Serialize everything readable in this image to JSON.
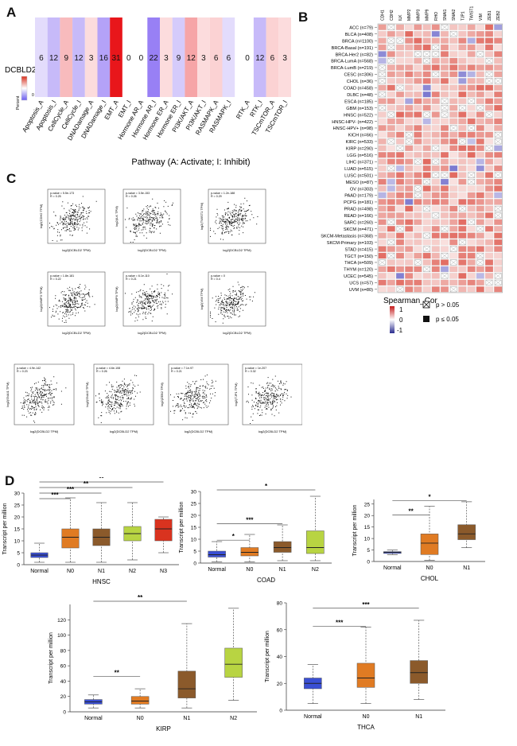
{
  "panels": {
    "A": "A",
    "B": "B",
    "C": "C",
    "D": "D"
  },
  "panelA": {
    "gene": "DCBLD2",
    "xlabel": "Pathway (A: Activate; I: Inhibit)",
    "legend_title": "Percent",
    "legend_zero": "0",
    "chart_data": {
      "type": "heatmap",
      "categories": [
        "Apoptosis_A",
        "Apoptosis_I",
        "CellCycle_A",
        "CellCycle_I",
        "DNADamage_A",
        "DNADamage_I",
        "EMT_A",
        "EMT_I",
        "Hormone AR_A",
        "Hormone AR_I",
        "Hormone ER_A",
        "Hormone ER_I",
        "PI3K/AKT_A",
        "PI3K/AKT_I",
        "RASMAPK_A",
        "RASMAPK_I",
        "RTK_A",
        "RTK_I",
        "TSCmTOR_A",
        "TSCmTOR_I"
      ],
      "values": [
        6,
        12,
        9,
        12,
        3,
        16,
        31,
        0,
        0,
        22,
        3,
        9,
        12,
        3,
        6,
        6,
        0,
        12,
        6,
        3
      ],
      "signs": [
        -1,
        -1,
        1,
        -1,
        1,
        -1,
        1,
        0,
        0,
        -1,
        1,
        -1,
        1,
        1,
        1,
        -1,
        0,
        -1,
        1,
        1
      ]
    }
  },
  "panelB": {
    "legend_title": "Spearman_Cor",
    "scale_labels": [
      "1",
      "0",
      "-1"
    ],
    "ns_label": "p > 0.05",
    "sig_label": "p ≤ 0.05",
    "chart_data": {
      "type": "heatmap",
      "genes": [
        "CDH1",
        "CDH2",
        "ILK",
        "MMP2",
        "MMP3",
        "MMP9",
        "RHO",
        "SNAI1",
        "SNAI2",
        "TJP1",
        "TWIST1",
        "VIM",
        "ZEB1",
        "ZEB2"
      ],
      "cancers": [
        "ACC (n=79)",
        "BLCA (n=408)",
        "BRCA (n=1100)",
        "BRCA-Basal (n=191)",
        "BRCA-Her2 (n=82)",
        "BRCA-LumA (n=568)",
        "BRCA-LumB (n=219)",
        "CESC (n=306)",
        "CHOL (n=36)",
        "COAD (n=458)",
        "DLBC (n=48)",
        "ESCA (n=185)",
        "GBM (n=153)",
        "HNSC (n=522)",
        "HNSC-HPV- (n=422)",
        "HNSC-HPV+ (n=98)",
        "KICH (n=66)",
        "KIRC (n=533)",
        "KIRP (n=290)",
        "LGG (n=516)",
        "LIHC (n=371)",
        "LUAD (n=515)",
        "LUSC (n=501)",
        "MESO (n=87)",
        "OV (n=303)",
        "PAAD (n=179)",
        "PCPG (n=181)",
        "PRAD (n=498)",
        "READ (n=166)",
        "SARC (n=260)",
        "SKCM (n=471)",
        "SKCM-Metastasis (n=368)",
        "SKCM-Primary (n=103)",
        "STAD (n=415)",
        "TGCT (n=150)",
        "THCA (n=509)",
        "THYM (n=120)",
        "UCEC (n=545)",
        "UCS (n=57)",
        "UVM (n=80)"
      ]
    }
  },
  "panelC": {
    "plots": [
      {
        "stat": "p-value = 5.5e-173",
        "r": "R = 0.25",
        "ylabel": "log2(CDH2 TPM)",
        "xlabel": "log2(DCBLD2 TPM)"
      },
      {
        "stat": "p-value = 3.5e-153",
        "r": "R = 0.26",
        "ylabel": "log2(ILK TPM)",
        "xlabel": "log2(DCBLD2 TPM)"
      },
      {
        "stat": "p-value = 1.2e-188",
        "r": "R = 0.29",
        "ylabel": "log2(TWIST1 TPM)",
        "xlabel": "log2(DCBLD2 TPM)"
      },
      {
        "stat": "p-value = 1.8e-181",
        "r": "R = 0.22",
        "ylabel": "log2(MMP3 TPM)",
        "xlabel": "log2(DCBLD2 TPM)"
      },
      {
        "stat": "p-value = 6.1e-110",
        "r": "R = 0.21",
        "ylabel": "log2(MMP9 TPM)",
        "xlabel": "log2(DCBLD2 TPM)"
      },
      {
        "stat": "p-value = 0",
        "r": "R = 0.4",
        "ylabel": "log2(VIM TPM)",
        "xlabel": "log2(DCBLD2 TPM)"
      },
      {
        "stat": "p-value = 4.9e-142",
        "r": "R = 0.23",
        "ylabel": "log2(SNAI1 TPM)",
        "xlabel": "log2(DCBLD2 TPM)"
      },
      {
        "stat": "p-value = 4.6e-108",
        "r": "R = 0.26",
        "ylabel": "log2(SNAI2 TPM)",
        "xlabel": "log2(DCBLD2 TPM)"
      },
      {
        "stat": "p-value = 7.1e-97",
        "r": "R = 0.21",
        "ylabel": "log2(ZEB2 TPM)",
        "xlabel": "log2(DCBLD2 TPM)"
      },
      {
        "stat": "p-value = 1e-207",
        "r": "R = 0.32",
        "ylabel": "log2(TJP1 TPM)",
        "xlabel": "log2(DCBLD2 TPM)"
      }
    ]
  },
  "panelD": {
    "ylabel": "Transcript per million",
    "colors": {
      "Normal": "#3a4fd4",
      "N0": "#e07b23",
      "N1": "#8b5a2b",
      "N2": "#b8d442",
      "N3": "#d9331f"
    },
    "chart_data": [
      {
        "type": "box",
        "title": "HNSC",
        "yticks": [
          "0",
          "5",
          "10",
          "15",
          "20",
          "25",
          "30"
        ],
        "ymax": 30,
        "categories": [
          "Normal",
          "N0",
          "N1",
          "N2",
          "N3"
        ],
        "stats": [
          [
            1,
            3,
            4,
            5,
            9
          ],
          [
            1,
            7,
            11.5,
            15,
            28
          ],
          [
            1,
            8,
            11.5,
            15,
            26
          ],
          [
            2,
            10,
            13,
            16,
            26
          ],
          [
            5,
            10,
            15,
            19,
            20
          ]
        ],
        "sig": [
          "**",
          "**",
          "***",
          "***"
        ]
      },
      {
        "type": "box",
        "title": "COAD",
        "yticks": [
          "0",
          "5",
          "10",
          "15",
          "20",
          "25",
          "30"
        ],
        "ymax": 30,
        "categories": [
          "Normal",
          "N0",
          "N1",
          "N2"
        ],
        "stats": [
          [
            0.5,
            2.5,
            3.5,
            5,
            9
          ],
          [
            0.5,
            3,
            4.5,
            6.5,
            12
          ],
          [
            1,
            4.5,
            6.5,
            9,
            16
          ],
          [
            1,
            4,
            6.5,
            13.5,
            28
          ]
        ],
        "sig": [
          "*",
          "***",
          "*"
        ]
      },
      {
        "type": "box",
        "title": "CHOL",
        "yticks": [
          "0",
          "5",
          "10",
          "15",
          "20",
          "25"
        ],
        "ymax": 27,
        "categories": [
          "Normal",
          "N0",
          "N1"
        ],
        "stats": [
          [
            3,
            3.5,
            4,
            4.3,
            5
          ],
          [
            0.5,
            3,
            8,
            12,
            24
          ],
          [
            6,
            9.5,
            12,
            16,
            26
          ]
        ],
        "sig": [
          "**",
          "*"
        ]
      },
      {
        "type": "box",
        "title": "KIRP",
        "yticks": [
          "0",
          "20",
          "40",
          "60",
          "80",
          "100",
          "120"
        ],
        "ymax": 140,
        "categories": [
          "Normal",
          "N0",
          "N1",
          "N2"
        ],
        "stats": [
          [
            5,
            10,
            13,
            16,
            22
          ],
          [
            5,
            10,
            14,
            20,
            30
          ],
          [
            5,
            18,
            30,
            53,
            115
          ],
          [
            15,
            45,
            62,
            83,
            135
          ]
        ],
        "sig": [
          "**",
          "**"
        ]
      },
      {
        "type": "box",
        "title": "THCA",
        "yticks": [
          "0",
          "20",
          "40",
          "60",
          "80"
        ],
        "ymax": 80,
        "categories": [
          "Normal",
          "N0",
          "N1"
        ],
        "stats": [
          [
            5,
            16,
            20,
            24,
            34
          ],
          [
            5,
            17,
            24,
            35,
            62
          ],
          [
            8,
            20,
            28,
            37,
            67
          ]
        ],
        "sig": [
          "***",
          "***"
        ]
      }
    ]
  }
}
